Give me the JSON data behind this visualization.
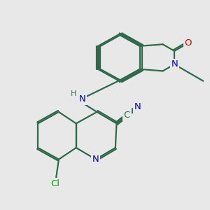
{
  "background_color": "#e8e8e8",
  "bond_color": "#2d6b4a",
  "atom_colors": {
    "N": "#0000cc",
    "O": "#cc0000",
    "Cl": "#00aa00",
    "C": "#2d6b4a"
  }
}
